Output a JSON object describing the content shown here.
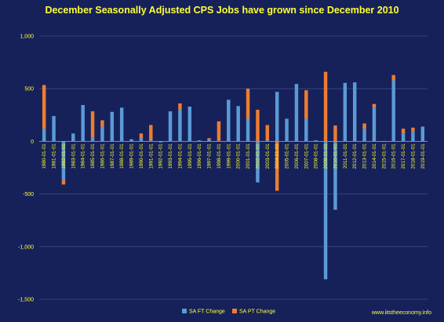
{
  "chart_data": {
    "type": "bar",
    "title": "December Seasonally Adjusted CPS Jobs have grown since December 2010",
    "xlabel": "",
    "ylabel": "",
    "ylim": [
      -1500,
      1000
    ],
    "yticks": [
      -1500,
      -1000,
      -500,
      0,
      500,
      1000
    ],
    "ytick_labels": [
      "-1,500",
      "-1,000",
      "-500",
      "0",
      "500",
      "1,000"
    ],
    "grid": true,
    "legend_position": "bottom-center",
    "source_note": "www.iitstheeconomy.info",
    "categories": [
      "1980-01-01",
      "1981-01-01",
      "1982-01-01",
      "1983-01-01",
      "1984-01-01",
      "1985-01-01",
      "1986-01-01",
      "1987-01-01",
      "1988-01-01",
      "1989-01-01",
      "1990-01-01",
      "1991-01-01",
      "1992-01-01",
      "1993-01-01",
      "1994-01-01",
      "1995-01-01",
      "1996-01-01",
      "1997-01-01",
      "1998-01-01",
      "1999-01-01",
      "2000-01-01",
      "2001-01-01",
      "2002-01-01",
      "2003-01-01",
      "2004-01-01",
      "2005-01-01",
      "2006-01-01",
      "2007-01-01",
      "2008-01-01",
      "2009-01-01",
      "2010-01-01",
      "2011-01-01",
      "2012-01-01",
      "2013-01-01",
      "2014-01-01",
      "2015-01-01",
      "2016-01-01",
      "2017-01-01",
      "2018-01-01",
      "2019-01-01"
    ],
    "series": [
      {
        "name": "SA FT Change",
        "color": "#5b9bd5",
        "values": [
          120,
          240,
          -370,
          75,
          345,
          35,
          140,
          280,
          320,
          20,
          30,
          10,
          -10,
          285,
          300,
          330,
          10,
          15,
          5,
          395,
          335,
          215,
          -390,
          10,
          470,
          215,
          545,
          215,
          10,
          -1310,
          -650,
          555,
          560,
          120,
          320,
          -5,
          580,
          75,
          95,
          140
        ]
      },
      {
        "name": "SA PT Change",
        "color": "#ed7d31",
        "values": [
          415,
          0,
          -40,
          0,
          0,
          250,
          60,
          0,
          0,
          0,
          45,
          145,
          0,
          0,
          60,
          0,
          0,
          15,
          185,
          0,
          0,
          285,
          300,
          145,
          -470,
          0,
          0,
          270,
          0,
          660,
          150,
          0,
          0,
          50,
          35,
          0,
          50,
          45,
          35,
          0
        ]
      }
    ]
  }
}
